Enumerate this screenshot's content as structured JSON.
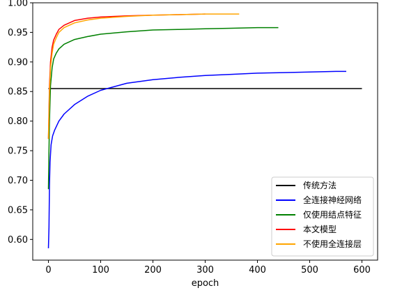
{
  "chart_data": {
    "type": "line",
    "title": "",
    "xlabel": "epoch",
    "ylabel": "",
    "xlim": [
      -30,
      630
    ],
    "ylim": [
      0.565,
      1.0
    ],
    "xticks": [
      0,
      100,
      200,
      300,
      400,
      500,
      600
    ],
    "yticks": [
      0.6,
      0.65,
      0.7,
      0.75,
      0.8,
      0.85,
      0.9,
      0.95,
      1.0
    ],
    "ytick_labels": [
      "0.60",
      "0.65",
      "0.70",
      "0.75",
      "0.80",
      "0.85",
      "0.90",
      "0.95",
      "1.00"
    ],
    "grid": false,
    "legend_position": "lower-right",
    "series": [
      {
        "name": "传统方法",
        "color": "#000000",
        "x": [
          0,
          600
        ],
        "y": [
          0.855,
          0.855
        ]
      },
      {
        "name": "全连接神经网络",
        "color": "#0000ff",
        "x": [
          0,
          1,
          2,
          3,
          5,
          8,
          12,
          20,
          30,
          50,
          75,
          100,
          150,
          200,
          250,
          300,
          350,
          400,
          450,
          500,
          550,
          570
        ],
        "y": [
          0.585,
          0.62,
          0.69,
          0.73,
          0.76,
          0.775,
          0.785,
          0.8,
          0.812,
          0.828,
          0.842,
          0.852,
          0.864,
          0.87,
          0.874,
          0.877,
          0.879,
          0.881,
          0.882,
          0.883,
          0.884,
          0.884
        ]
      },
      {
        "name": "仅使用结点特征",
        "color": "#008000",
        "x": [
          0,
          1,
          2,
          4,
          7,
          10,
          15,
          20,
          30,
          50,
          75,
          100,
          150,
          200,
          250,
          300,
          350,
          400,
          440
        ],
        "y": [
          0.685,
          0.75,
          0.8,
          0.86,
          0.89,
          0.905,
          0.915,
          0.922,
          0.93,
          0.938,
          0.943,
          0.947,
          0.951,
          0.954,
          0.955,
          0.956,
          0.957,
          0.958,
          0.958
        ]
      },
      {
        "name": "本文模型",
        "color": "#ff0000",
        "x": [
          0,
          1,
          2,
          4,
          7,
          10,
          15,
          20,
          30,
          50,
          75,
          100,
          150,
          200,
          250,
          300
        ],
        "y": [
          0.77,
          0.82,
          0.86,
          0.9,
          0.925,
          0.937,
          0.947,
          0.955,
          0.962,
          0.97,
          0.974,
          0.976,
          0.978,
          0.979,
          0.98,
          0.981
        ]
      },
      {
        "name": "不使用全连接层",
        "color": "#ffa500",
        "x": [
          0,
          1,
          2,
          4,
          7,
          10,
          15,
          20,
          30,
          50,
          75,
          100,
          150,
          200,
          250,
          300,
          365
        ],
        "y": [
          0.77,
          0.81,
          0.85,
          0.89,
          0.915,
          0.93,
          0.941,
          0.95,
          0.958,
          0.966,
          0.971,
          0.974,
          0.977,
          0.979,
          0.98,
          0.981,
          0.981
        ]
      }
    ]
  }
}
